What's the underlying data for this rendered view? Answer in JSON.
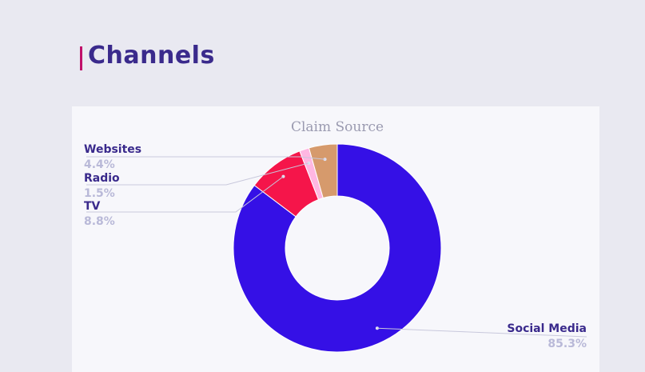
{
  "page": {
    "title": "Channels"
  },
  "chart_data": {
    "type": "pie",
    "title": "Claim Source",
    "donut": true,
    "legend": "none",
    "slices": [
      {
        "label": "Social Media",
        "value": 85.3,
        "display": "85.3%",
        "color": "#3510e6"
      },
      {
        "label": "TV",
        "value": 8.8,
        "display": "8.8%",
        "color": "#f5154a"
      },
      {
        "label": "Radio",
        "value": 1.5,
        "display": "1.5%",
        "color": "#ffb7e2"
      },
      {
        "label": "Websites",
        "value": 4.4,
        "display": "4.4%",
        "color": "#d69a6c"
      }
    ]
  }
}
